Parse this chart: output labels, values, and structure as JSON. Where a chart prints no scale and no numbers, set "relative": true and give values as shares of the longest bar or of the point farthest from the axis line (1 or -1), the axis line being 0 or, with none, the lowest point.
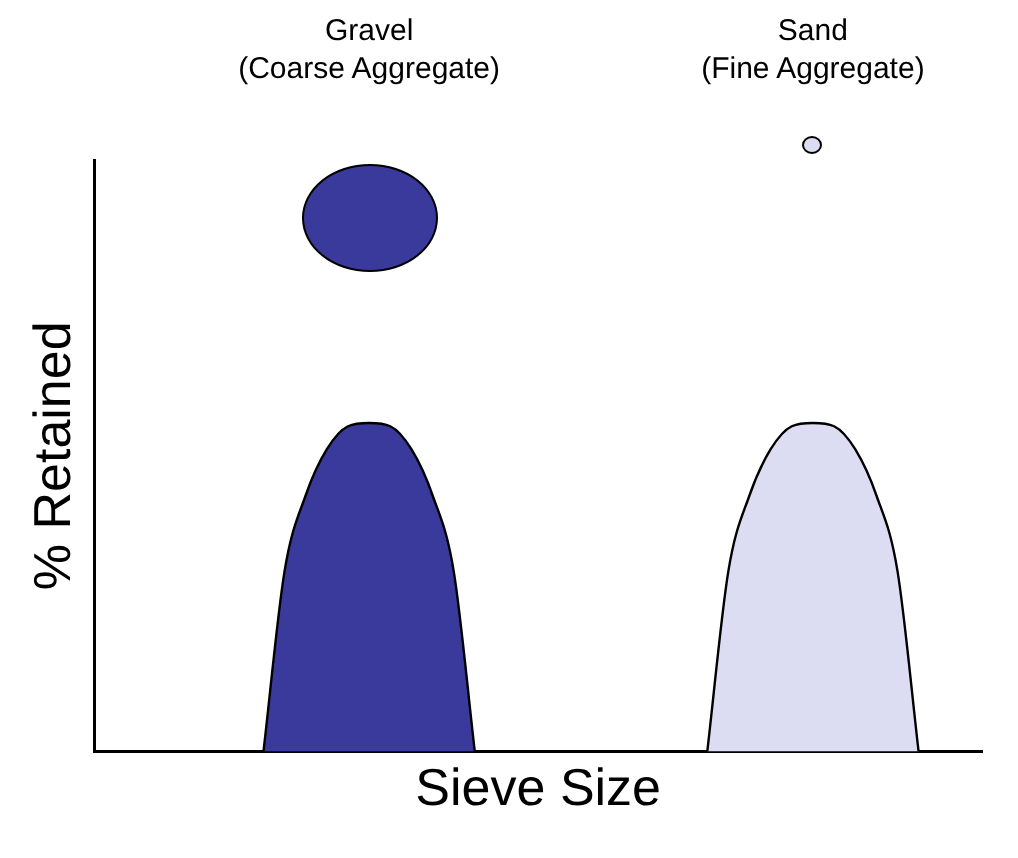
{
  "chart_data": {
    "type": "area",
    "relative": true,
    "xlabel": "Sieve Size",
    "ylabel": "% Retained",
    "legend": false,
    "grid": false,
    "annotations": [
      "Gravel\n(Coarse Aggregate)",
      "Sand\n(Fine Aggregate)"
    ],
    "categories": [
      null,
      null,
      null,
      null,
      null,
      null,
      null,
      null,
      null,
      null,
      null,
      null,
      null,
      null,
      null,
      null,
      null,
      null,
      null,
      null,
      null,
      null,
      null,
      null,
      null,
      null,
      null,
      null,
      null,
      null,
      null,
      null,
      null,
      null,
      null,
      null,
      null,
      null,
      null,
      null,
      null,
      null,
      null
    ],
    "series": [
      {
        "color": "#3a3a9c",
        "values": [
          null,
          null,
          null,
          null,
          null,
          null,
          null,
          null,
          0,
          0.55,
          0.78,
          0.92,
          0.99,
          1,
          0.99,
          0.92,
          0.78,
          0.55,
          0,
          null,
          null,
          null,
          null,
          null,
          null,
          null,
          null,
          null,
          null,
          null,
          null,
          null,
          null,
          null,
          null,
          null,
          null,
          null,
          null,
          null,
          null,
          null,
          null
        ]
      },
      {
        "color": "#dcdcf2",
        "values": [
          null,
          null,
          null,
          null,
          null,
          null,
          null,
          null,
          null,
          null,
          null,
          null,
          null,
          null,
          null,
          null,
          null,
          null,
          null,
          null,
          null,
          null,
          null,
          null,
          null,
          null,
          null,
          null,
          null,
          0,
          0.55,
          0.78,
          0.92,
          0.99,
          1,
          0.99,
          0.92,
          0.78,
          0.55,
          0,
          null,
          null,
          null
        ]
      }
    ]
  }
}
